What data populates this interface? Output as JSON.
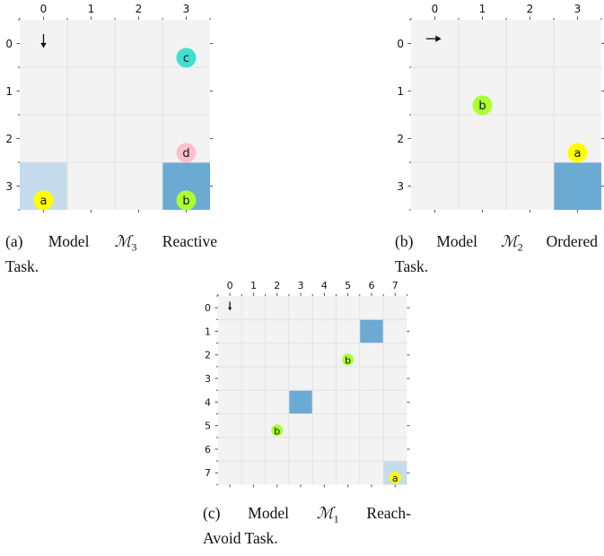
{
  "panels": [
    {
      "id": "a",
      "size": 4,
      "col_labels": [
        "0",
        "1",
        "2",
        "3"
      ],
      "row_labels": [
        "0",
        "1",
        "2",
        "3"
      ],
      "agent": {
        "row": 0,
        "col": 0,
        "direction": "down",
        "icon": "arrow-down-icon"
      },
      "cells": [
        {
          "row": 3,
          "col": 0,
          "shade": "light",
          "color": "#c4dcec"
        },
        {
          "row": 3,
          "col": 3,
          "shade": "dark",
          "color": "#6aaad3"
        }
      ],
      "markers": [
        {
          "label": "c",
          "row": 0.3,
          "col": 3,
          "color": "#40e0d0"
        },
        {
          "label": "d",
          "row": 2.3,
          "col": 3,
          "color": "#ffc0cb"
        },
        {
          "label": "a",
          "row": 3.3,
          "col": 0,
          "color": "#ffff00"
        },
        {
          "label": "b",
          "row": 3.3,
          "col": 3,
          "color": "#adff2f"
        }
      ],
      "caption": {
        "prefix": "(a) Model ",
        "symbol": "ℳ",
        "subscript": "3",
        "rest_line1": " Reactive",
        "line2": "Task."
      }
    },
    {
      "id": "b",
      "size": 4,
      "col_labels": [
        "0",
        "1",
        "2",
        "3"
      ],
      "row_labels": [
        "0",
        "1",
        "2",
        "3"
      ],
      "agent": {
        "row": 0,
        "col": 0,
        "direction": "right",
        "icon": "arrow-right-icon"
      },
      "cells": [
        {
          "row": 3,
          "col": 3,
          "shade": "dark",
          "color": "#6aaad3"
        }
      ],
      "markers": [
        {
          "label": "b",
          "row": 1.3,
          "col": 1,
          "color": "#adff2f"
        },
        {
          "label": "a",
          "row": 2.3,
          "col": 3,
          "color": "#ffff00"
        }
      ],
      "caption": {
        "prefix": "(b) Model ",
        "symbol": "ℳ",
        "subscript": "2",
        "rest_line1": " Ordered",
        "line2": "Task."
      }
    },
    {
      "id": "c",
      "size": 8,
      "col_labels": [
        "0",
        "1",
        "2",
        "3",
        "4",
        "5",
        "6",
        "7"
      ],
      "row_labels": [
        "0",
        "1",
        "2",
        "3",
        "4",
        "5",
        "6",
        "7"
      ],
      "agent": {
        "row": 0,
        "col": 0,
        "direction": "down",
        "icon": "arrow-down-icon"
      },
      "cells": [
        {
          "row": 1,
          "col": 6,
          "shade": "dark",
          "color": "#6aaad3"
        },
        {
          "row": 4,
          "col": 3,
          "shade": "dark",
          "color": "#6aaad3"
        },
        {
          "row": 7,
          "col": 7,
          "shade": "light",
          "color": "#c4dcec"
        }
      ],
      "markers": [
        {
          "label": "b",
          "row": 2.2,
          "col": 5,
          "color": "#adff2f"
        },
        {
          "label": "b",
          "row": 5.2,
          "col": 2,
          "color": "#adff2f"
        },
        {
          "label": "a",
          "row": 7.2,
          "col": 7,
          "color": "#ffff00"
        }
      ],
      "caption": {
        "prefix": "(c) Model ",
        "symbol": "ℳ",
        "subscript": "1",
        "rest_line1": " Reach-",
        "line2": "Avoid Task."
      }
    }
  ]
}
